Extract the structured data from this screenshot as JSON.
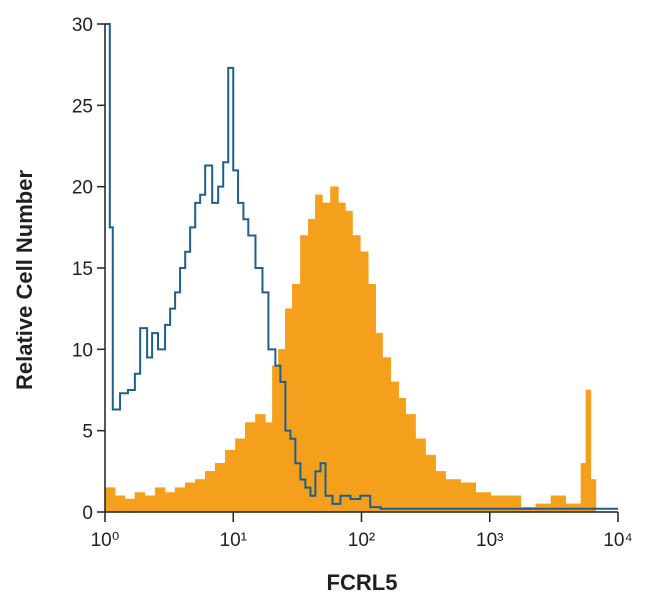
{
  "chart_data": {
    "type": "histogram-overlay",
    "xlabel": "FCRL5",
    "ylabel": "Relative Cell Number",
    "xscale": "log",
    "xlim": [
      1,
      10000
    ],
    "ylim": [
      0,
      30
    ],
    "xticks": [
      {
        "value": 1,
        "label": "10⁰"
      },
      {
        "value": 10,
        "label": "10¹"
      },
      {
        "value": 100,
        "label": "10²"
      },
      {
        "value": 1000,
        "label": "10³"
      },
      {
        "value": 10000,
        "label": "10⁴"
      }
    ],
    "yticks": [
      0,
      5,
      10,
      15,
      20,
      25,
      30
    ],
    "series": [
      {
        "color": "#f5a01d",
        "fill": true,
        "x": [
          1,
          1.2,
          1.43,
          1.71,
          2.05,
          2.46,
          2.94,
          3.52,
          4.22,
          5.05,
          6.04,
          7.23,
          8.66,
          10.4,
          12.4,
          14.9,
          17.8,
          20.2,
          22.5,
          25.5,
          28.9,
          33.4,
          38.5,
          43.7,
          49.6,
          57.3,
          66.1,
          75,
          85.1,
          98,
          113,
          129,
          146,
          169,
          195,
          221,
          264,
          316,
          379,
          453,
          593,
          778,
          1020,
          1330,
          1750,
          2290,
          3000,
          3920,
          5140,
          5620,
          6150,
          6730
        ],
        "values": [
          1.5,
          1,
          0.8,
          1.2,
          1,
          1.5,
          1.2,
          1.5,
          1.8,
          2,
          2.5,
          3,
          3.8,
          4.5,
          5.5,
          6,
          5.5,
          9,
          10,
          12.5,
          14,
          17,
          18,
          19.5,
          19,
          20,
          19,
          18.5,
          17,
          16,
          14,
          11,
          9.5,
          8,
          7,
          6,
          4.5,
          3.5,
          2.5,
          2,
          1.8,
          1.2,
          1,
          1,
          0.3,
          0.5,
          1,
          0.5,
          3,
          7.5,
          2,
          0
        ]
      },
      {
        "color": "#1f5f8b",
        "fill": false,
        "x": [
          1,
          1.09,
          1.15,
          1.31,
          1.51,
          1.71,
          1.88,
          2.13,
          2.33,
          2.59,
          2.94,
          3.22,
          3.52,
          3.85,
          4.22,
          4.61,
          5.05,
          5.52,
          6.04,
          6.85,
          7.63,
          8.35,
          9.14,
          10,
          10.9,
          12,
          13.1,
          14.9,
          16.9,
          18.8,
          21.3,
          23.3,
          25.5,
          27.9,
          30.5,
          33.4,
          36.5,
          40,
          43.7,
          47.9,
          52.4,
          59.4,
          68.5,
          82,
          98,
          117,
          141,
          496,
          3000,
          10000
        ],
        "values": [
          30,
          17.5,
          6.3,
          7.3,
          7.5,
          8.5,
          11.3,
          9.5,
          11,
          10,
          11.5,
          12.5,
          13.5,
          15,
          16,
          17.5,
          19,
          19.5,
          21.3,
          19,
          20,
          21.5,
          27.3,
          21,
          19,
          18,
          17,
          15,
          13.5,
          10,
          9,
          8,
          5,
          4.5,
          3,
          2,
          1.5,
          1,
          2.5,
          3,
          1,
          0.5,
          1,
          0.8,
          1,
          0.3,
          0.2,
          0.2,
          0.2,
          0.2
        ]
      }
    ]
  }
}
